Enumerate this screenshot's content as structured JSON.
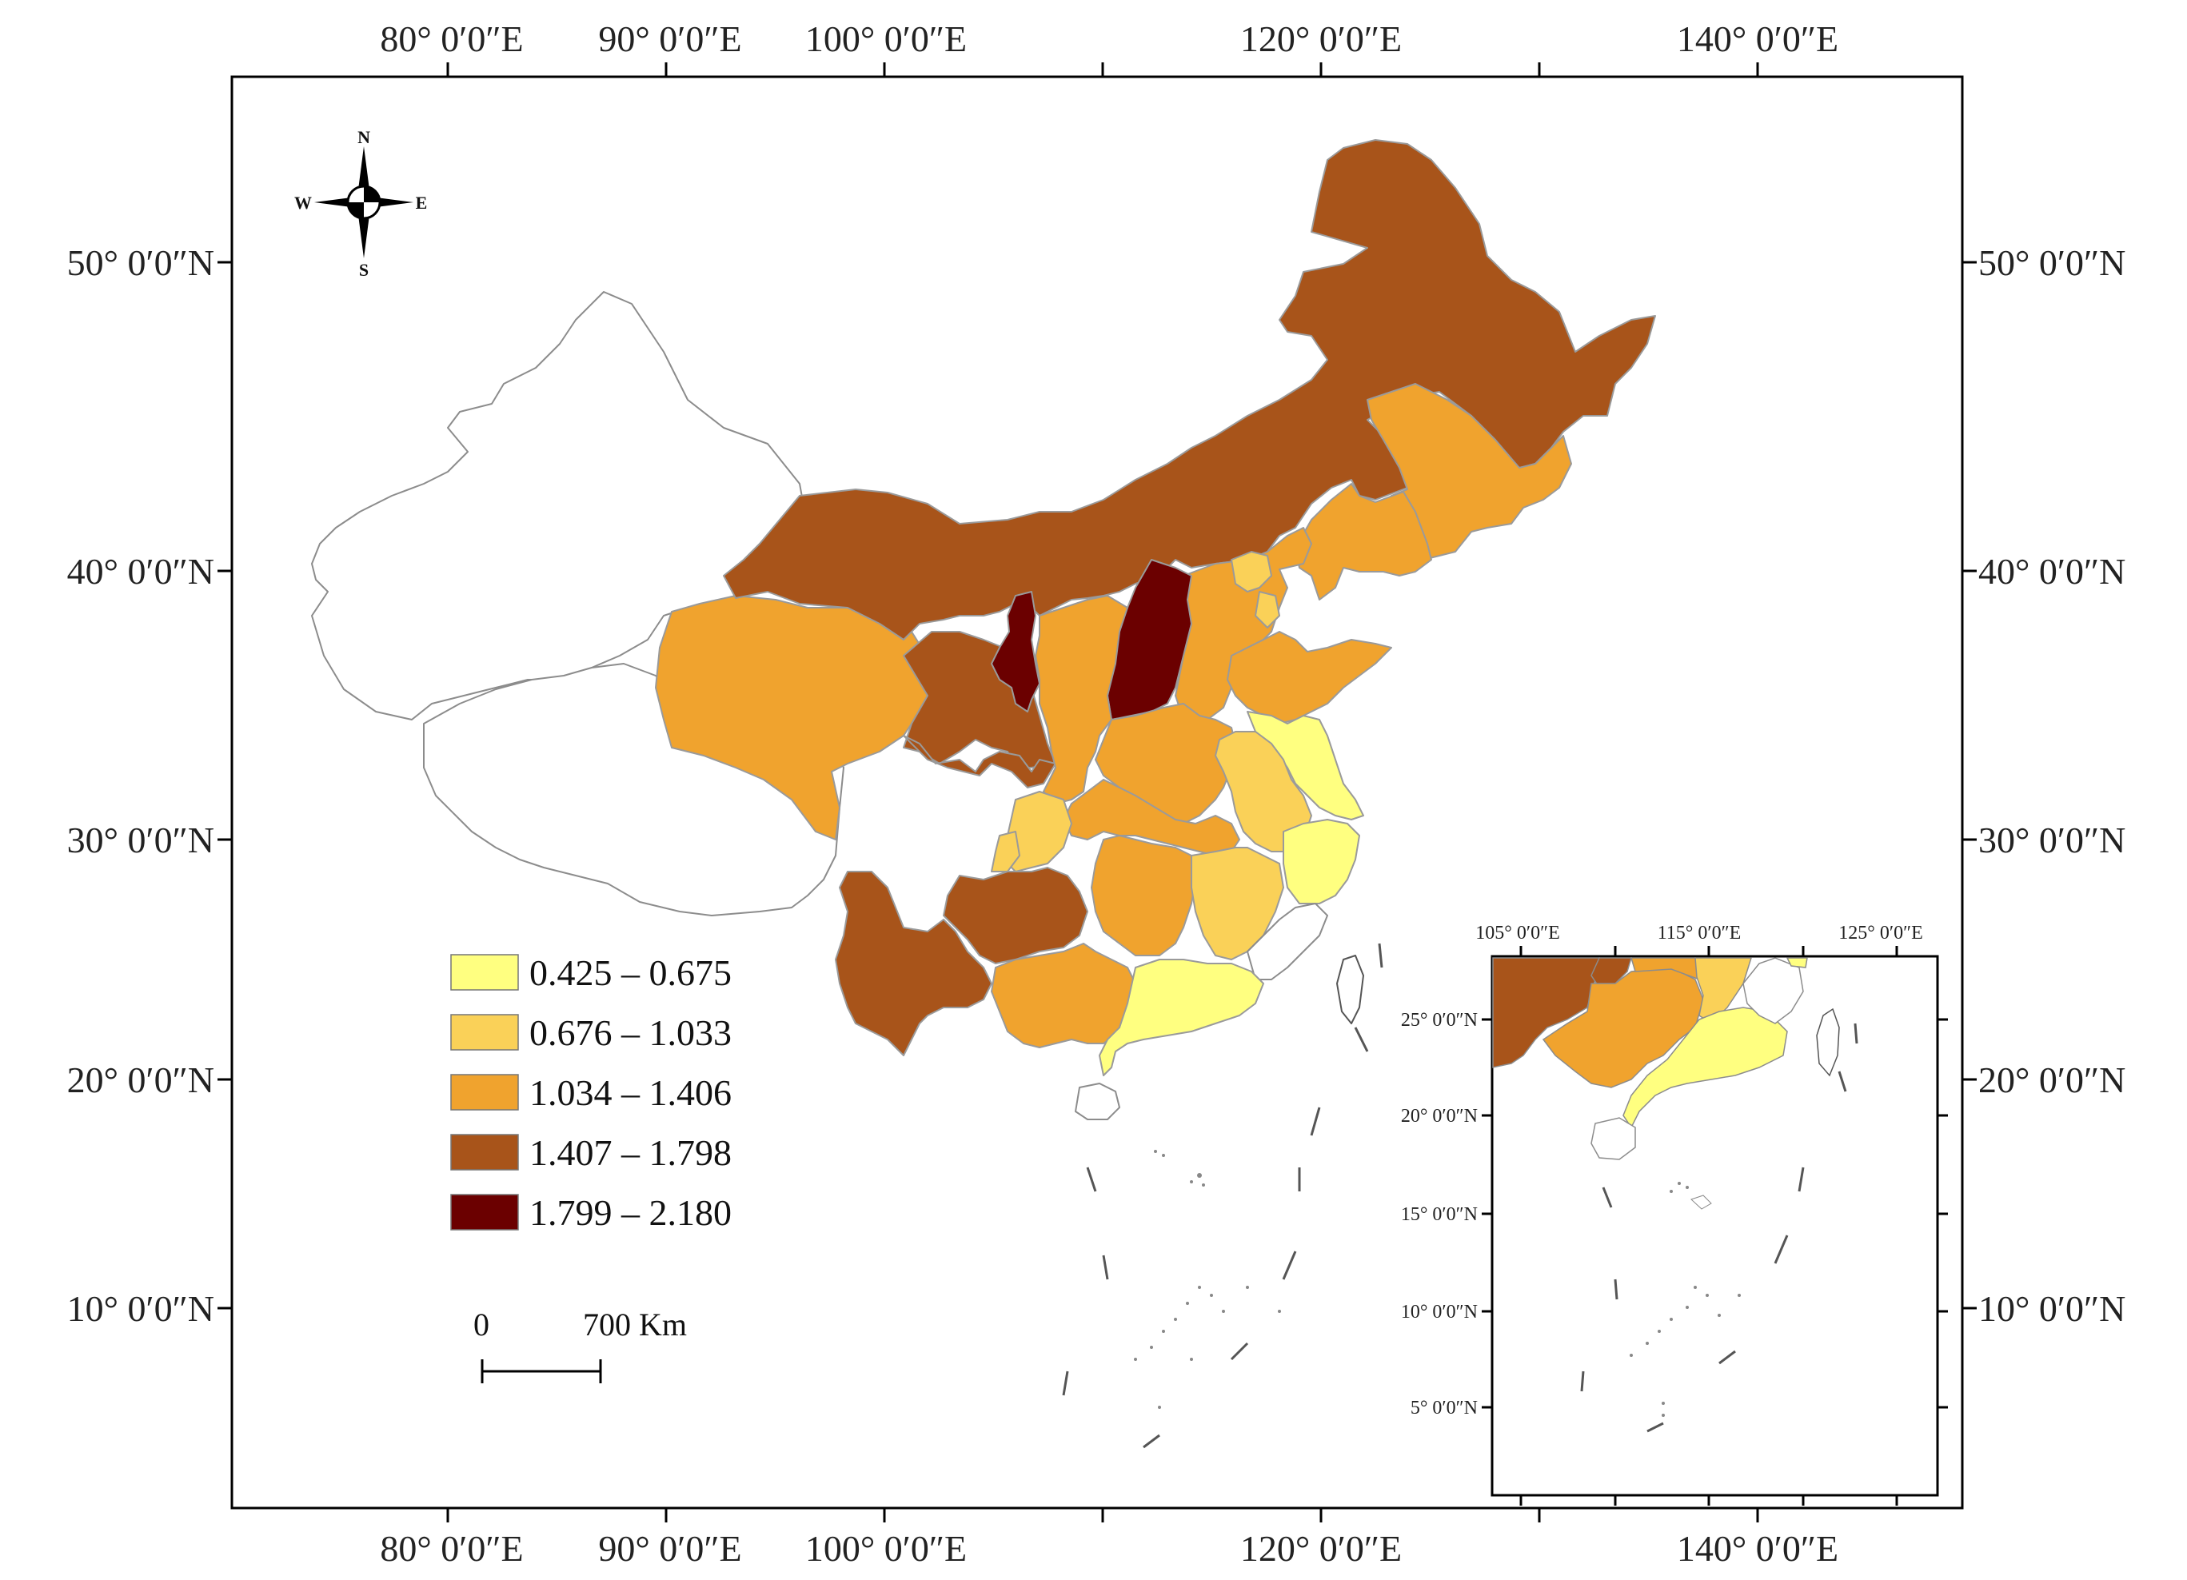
{
  "map": {
    "top_ticks": [
      "80° 0′0″E",
      "90° 0′0″E",
      "100° 0′0″E",
      "120° 0′0″E",
      "140° 0′0″E"
    ],
    "bottom_ticks": [
      "80° 0′0″E",
      "90° 0′0″E",
      "100° 0′0″E",
      "120° 0′0″E",
      "140° 0′0″E"
    ],
    "left_ticks": [
      "50° 0′0″N",
      "40° 0′0″N",
      "30° 0′0″N",
      "20° 0′0″N",
      "10° 0′0″N"
    ],
    "right_ticks": [
      "50° 0′0″N",
      "40° 0′0″N",
      "30° 0′0″N",
      "20° 0′0″N",
      "10° 0′0″N"
    ]
  },
  "compass": {
    "n": "N",
    "s": "S",
    "e": "E",
    "w": "W"
  },
  "legend": {
    "classes": [
      {
        "label": "0.425 – 0.675",
        "color": "#FFFF80"
      },
      {
        "label": "0.676 – 1.033",
        "color": "#FAD158"
      },
      {
        "label": "1.034 – 1.406",
        "color": "#F0A32E"
      },
      {
        "label": "1.407 – 1.798",
        "color": "#A8541A"
      },
      {
        "label": "1.799 – 2.180",
        "color": "#6B0000"
      }
    ]
  },
  "scale_bar": {
    "start_label": "0",
    "end_label": "700 Km"
  },
  "inset": {
    "top_ticks": [
      "105° 0′0″E",
      "115° 0′0″E",
      "125° 0′0″E"
    ],
    "left_ticks": [
      "25° 0′0″N",
      "20° 0′0″N",
      "15° 0′0″N",
      "10° 0′0″N",
      "5° 0′0″N"
    ]
  }
}
